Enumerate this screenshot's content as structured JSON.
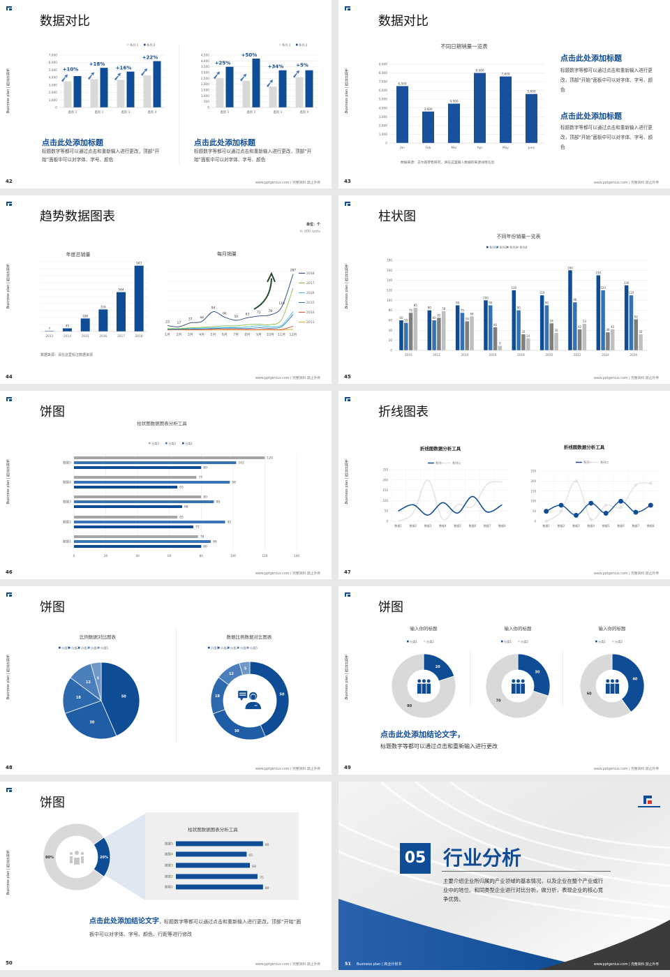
{
  "common": {
    "side_text": "Business plan | 商业计划书",
    "footer": "www.pptgenius.com | 完整资料 禁止外传",
    "brand_color": "#0f4c96"
  },
  "slides": [
    {
      "page": "42",
      "title": "数据对比",
      "blocks": [
        {
          "heading": "点击此处添加标题",
          "body": "标题数字等都可以通过点击和重新输入进行更改，顶部“开始”面板中可以对字体、字号、颜色"
        },
        {
          "heading": "点击此处添加标题",
          "body": "标题数字等都可以通过点击和重新输入进行更改，顶部“开始”面板中可以对字体、字号、颜色"
        }
      ]
    },
    {
      "page": "43",
      "title": "数据对比",
      "source": "数据来源：志尔森零售研究，请在这里输入数据的来源详情信息",
      "blocks": [
        {
          "heading": "点击此处添加标题",
          "body": "标题数字等都可以通过点击和重新输入进行更改，顶部“开始”面板中可以对字体、字号、颜色"
        },
        {
          "heading": "点击此处添加标题",
          "body": "标题数字等都可以通过点击和重新输入进行更改，顶部“开始”面板中可以对字体、字号、颜色"
        }
      ]
    },
    {
      "page": "44",
      "title": "趋势数据图表",
      "unit": "单位：个",
      "unit_en": "in 000 units",
      "source": "数据来源：请在这里标注数据来源"
    },
    {
      "page": "45",
      "title": "柱状图"
    },
    {
      "page": "46",
      "title": "饼图"
    },
    {
      "page": "47",
      "title": "折线图表"
    },
    {
      "page": "48",
      "title": "饼图"
    },
    {
      "page": "49",
      "title": "饼图",
      "conclusion": "点击此处添加结论文字，",
      "body": "标题数字等都可以通过点击和重新输入进行更改"
    },
    {
      "page": "50",
      "title": "饼图",
      "conclusion": "点击此处添加结论文字",
      "body": "，标题数字等都可以通过点击和重新输入进行更改，顶部“开始”面板中可以对字体、字号、颜色、行距等进行修改"
    },
    {
      "page": "51",
      "number": "05",
      "title": "行业分析",
      "body": "主要介绍企业所归属的产业领域的基本情况，以及企业在整个产业或行业中的地位。和同类型企业进行对比分析，做分析，表现企业的核心竞争优势。",
      "footer_left": "Business plan | 商业计划书"
    }
  ],
  "chart_data": [
    {
      "type": "bar",
      "categories": [
        "类别 1",
        "类别 2",
        "类别 3",
        "类别 4"
      ],
      "series": [
        {
          "name": "系列 1",
          "values": [
            3500,
            3800,
            3700,
            4300
          ],
          "color": "#d9d9d9"
        },
        {
          "name": "系列 2",
          "values": [
            4200,
            5300,
            4800,
            6200
          ],
          "color": "#0f4c96"
        }
      ],
      "ylim": [
        0,
        7000
      ],
      "ytick": 1000,
      "annotations": [
        "+10%",
        "+18%",
        "+16%",
        "+22%"
      ],
      "legend": "top-right"
    },
    {
      "type": "bar",
      "categories": [
        "类别 1",
        "类别 2",
        "类别 3",
        "类别 4"
      ],
      "series": [
        {
          "name": "系列 1",
          "values": [
            2500,
            2300,
            1800,
            2600
          ],
          "color": "#d9d9d9"
        },
        {
          "name": "系列 2",
          "values": [
            3500,
            4200,
            3200,
            3200
          ],
          "color": "#0f4c96"
        }
      ],
      "ylim": [
        0,
        4500
      ],
      "ytick": 500,
      "annotations": [
        "+25%",
        "+50%",
        "+34%",
        "+5%"
      ],
      "legend": "top-right"
    },
    {
      "type": "bar",
      "title": "不同日期销量一览表",
      "categories": [
        "Jan",
        "Feb",
        "Mar",
        "Apr",
        "May",
        "June"
      ],
      "series": [
        {
          "values": [
            6500,
            3600,
            4500,
            8000,
            7600,
            5600
          ],
          "color": "#1a4f9c"
        }
      ],
      "ylim": [
        0,
        9000
      ],
      "ytick": 1000,
      "data_labels": true
    },
    {
      "type": "bar",
      "title": "年度总销量",
      "categories": [
        "2013",
        "2014",
        "2015",
        "2016",
        "2017",
        "2018"
      ],
      "series": [
        {
          "values": [
            7,
            45,
            186,
            316,
            564,
            943
          ],
          "color": "#0f4c96"
        }
      ],
      "ylim": [
        0,
        1000
      ],
      "ytick": 100,
      "data_labels": true
    },
    {
      "type": "line",
      "title": "每月销量",
      "categories": [
        "1月",
        "2月",
        "3月",
        "4月",
        "5月",
        "6月",
        "7月",
        "8月",
        "9月",
        "10月",
        "11月",
        "12月"
      ],
      "ylim": [
        0,
        300
      ],
      "ytick": 50,
      "legend": "right",
      "series": [
        {
          "name": "2018",
          "values": [
            23,
            17,
            37,
            44,
            94,
            66,
            50,
            63,
            72,
            78,
            118,
            287
          ],
          "color": "#1f3f7a",
          "data_labels": true
        },
        {
          "name": "2017",
          "values": [
            8,
            8,
            12,
            14,
            18,
            22,
            22,
            28,
            30,
            28,
            55,
            215
          ],
          "color": "#8cbd45"
        },
        {
          "name": "2016",
          "values": [
            6,
            6,
            8,
            10,
            12,
            14,
            14,
            16,
            22,
            18,
            25,
            95
          ],
          "color": "#3ebfdc"
        },
        {
          "name": "2015",
          "values": [
            4,
            4,
            6,
            6,
            8,
            10,
            10,
            8,
            12,
            10,
            18,
            80
          ],
          "color": "#2e6fb0"
        },
        {
          "name": "2014",
          "values": [
            2,
            2,
            2,
            2,
            4,
            4,
            4,
            3,
            3,
            4,
            3,
            20
          ],
          "color": "#d9532a"
        },
        {
          "name": "2013",
          "values": [
            1,
            1,
            1,
            1,
            1,
            1,
            1,
            1,
            1,
            1,
            1,
            4
          ],
          "color": "#f2a72e"
        }
      ]
    },
    {
      "type": "bar",
      "title": "不同年份销量一览表",
      "categories": [
        "2010",
        "2012",
        "2014",
        "2016",
        "2018",
        "2020",
        "2022",
        "2024",
        "2026"
      ],
      "ylim": [
        0,
        180
      ],
      "ytick": 20,
      "data_labels": true,
      "legend": "top",
      "series": [
        {
          "name": "系列1",
          "values": [
            60,
            80,
            90,
            100,
            120,
            110,
            160,
            150,
            130
          ],
          "color": "#0f4c96"
        },
        {
          "name": "系列2",
          "values": [
            55,
            60,
            75,
            90,
            80,
            90,
            96,
            120,
            110
          ],
          "color": "#3572b5"
        },
        {
          "name": "系列3",
          "values": [
            75,
            65,
            58,
            46,
            32,
            54,
            42,
            36,
            62
          ],
          "color": "#7f7f7f"
        },
        {
          "name": "系列4",
          "values": [
            85,
            78,
            68,
            9,
            24,
            35,
            53,
            42,
            32
          ],
          "color": "#bfbfbf"
        }
      ]
    },
    {
      "type": "bar",
      "orientation": "horizontal",
      "title": "柱状图数据图表分析工具",
      "categories": [
        "数据5",
        "数据4",
        "数据3",
        "数据2",
        "数据1"
      ],
      "xlim": [
        0,
        140
      ],
      "xtick": 20,
      "data_labels": true,
      "legend": "top",
      "series": [
        {
          "name": "分类3",
          "values": [
            120,
            77,
            80,
            65,
            78
          ],
          "color": "#a6a6a6"
        },
        {
          "name": "分类2",
          "values": [
            102,
            98,
            88,
            95,
            86
          ],
          "color": "#3a74b8"
        },
        {
          "name": "分类1",
          "values": [
            80,
            65,
            68,
            75,
            80
          ],
          "color": "#0f4c96"
        }
      ]
    },
    {
      "type": "line",
      "title": "折线图数据分析工具",
      "categories": [
        "数据1",
        "数据2",
        "数据3",
        "数据4",
        "数据5",
        "数据6",
        "数据7",
        "数据8"
      ],
      "ylim": [
        0,
        250
      ],
      "ytick": 50,
      "smooth": true,
      "legend": "top",
      "series": [
        {
          "name": "系列一",
          "values": [
            50,
            80,
            30,
            90,
            40,
            120,
            45,
            80
          ],
          "color": "#0f4c96"
        },
        {
          "name": "系列二",
          "values": [
            0,
            40,
            200,
            10,
            80,
            70,
            180,
            190
          ],
          "color": "#e3e3e3"
        }
      ]
    },
    {
      "type": "line",
      "title": "折线图数据分析工具",
      "categories": [
        "数据1",
        "数据2",
        "数据3",
        "数据4",
        "数据5",
        "数据6",
        "数据7",
        "数据8"
      ],
      "ylim": [
        0,
        250
      ],
      "ytick": 50,
      "smooth": true,
      "markers": true,
      "legend": "top",
      "series": [
        {
          "name": "系列一",
          "values": [
            50,
            80,
            30,
            90,
            40,
            100,
            45,
            80
          ],
          "color": "#0f4c96"
        },
        {
          "name": "系列二",
          "values": [
            0,
            50,
            200,
            10,
            80,
            70,
            180,
            190
          ],
          "color": "#e3e3e3"
        }
      ]
    },
    {
      "type": "pie",
      "title": "比例数据对比图表",
      "categories": [
        "分类1",
        "分类2",
        "分类3",
        "分类4",
        "分类5"
      ],
      "values": [
        50,
        30,
        18,
        12,
        5
      ],
      "colors": [
        "#0f4c96",
        "#1f5ea6",
        "#2d69ae",
        "#4b7fbb",
        "#6f97c8"
      ],
      "legend": "top"
    },
    {
      "type": "pie",
      "donut": true,
      "title": "数据比例数据对比图表",
      "categories": [
        "分类1",
        "分类2",
        "分类3",
        "分类4",
        "分类5"
      ],
      "values": [
        50,
        30,
        18,
        12,
        5
      ],
      "colors": [
        "#0f4c96",
        "#1f5ea6",
        "#2d69ae",
        "#4b7fbb",
        "#6f97c8"
      ],
      "legend": "top"
    },
    {
      "type": "pie",
      "donut": true,
      "title": "输入你的标题",
      "categories": [
        "分类1",
        "分类2"
      ],
      "values": [
        20,
        80
      ],
      "colors": [
        "#0f4c96",
        "#d9d9d9"
      ],
      "legend": "top"
    },
    {
      "type": "pie",
      "donut": true,
      "title": "输入你的标题",
      "categories": [
        "分类1",
        "分类2"
      ],
      "values": [
        30,
        70
      ],
      "colors": [
        "#0f4c96",
        "#d9d9d9"
      ],
      "legend": "top"
    },
    {
      "type": "pie",
      "donut": true,
      "title": "输入你的标题",
      "categories": [
        "分类1",
        "分类2"
      ],
      "values": [
        40,
        60
      ],
      "colors": [
        "#0f4c96",
        "#d9d9d9"
      ],
      "legend": "top"
    },
    {
      "type": "pie",
      "donut": true,
      "categories": [
        "",
        ""
      ],
      "values": [
        20,
        80
      ],
      "value_suffix": "%",
      "colors": [
        "#0f4c96",
        "#d9d9d9"
      ]
    },
    {
      "type": "bar",
      "orientation": "horizontal",
      "title": "柱状图数据图表分析工具",
      "categories": [
        "数据5",
        "数据4",
        "数据3",
        "数据2",
        "数据1"
      ],
      "xlim": [
        0,
        100
      ],
      "data_labels": true,
      "series": [
        {
          "values": [
            80,
            65,
            68,
            75,
            80
          ],
          "color": "#0f4c96"
        }
      ]
    }
  ]
}
